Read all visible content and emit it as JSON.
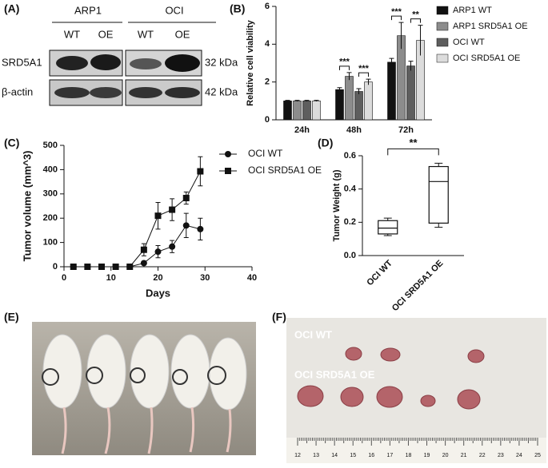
{
  "panel_labels": [
    "(A)",
    "(B)",
    "(C)",
    "(D)",
    "(E)",
    "(F)"
  ],
  "blot": {
    "groups": [
      "ARP1",
      "OCI"
    ],
    "lanes": [
      "WT",
      "OE",
      "WT",
      "OE"
    ],
    "rows": [
      "SRD5A1",
      "β-actin"
    ],
    "sizes": [
      "32 kDa",
      "42 kDa"
    ]
  },
  "photo_f": {
    "labels": [
      "OCI WT",
      "OCI SRD5A1 OE"
    ],
    "ruler": [
      12,
      13,
      14,
      15,
      16,
      17,
      18,
      19,
      20,
      21,
      22,
      23,
      24,
      25
    ]
  },
  "chart_data": [
    {
      "type": "bar",
      "y_label": "Relative cell viability",
      "categories": [
        "24h",
        "48h",
        "72h"
      ],
      "series": [
        {
          "name": "ARP1 WT",
          "color": "#111111",
          "values": [
            1.0,
            1.6,
            3.05
          ],
          "errors": [
            0.03,
            0.1,
            0.2
          ]
        },
        {
          "name": "ARP1 SRD5A1 OE",
          "color": "#8c8c8c",
          "values": [
            1.0,
            2.3,
            4.45
          ],
          "errors": [
            0.03,
            0.2,
            0.7
          ]
        },
        {
          "name": "OCI WT",
          "color": "#5e5e5e",
          "values": [
            1.0,
            1.5,
            2.85
          ],
          "errors": [
            0.03,
            0.15,
            0.25
          ]
        },
        {
          "name": "OCI SRD5A1 OE",
          "color": "#dcdcdc",
          "values": [
            1.0,
            2.0,
            4.2
          ],
          "errors": [
            0.03,
            0.15,
            0.8
          ]
        }
      ],
      "ylim": [
        0,
        6
      ],
      "yticks": [
        0,
        2,
        4,
        6
      ],
      "annotations": [
        {
          "label": "***",
          "category": "48h",
          "series": [
            "ARP1 WT",
            "ARP1 SRD5A1 OE"
          ]
        },
        {
          "label": "***",
          "category": "48h",
          "series": [
            "OCI WT",
            "OCI SRD5A1 OE"
          ]
        },
        {
          "label": "***",
          "category": "72h",
          "series": [
            "ARP1 WT",
            "ARP1 SRD5A1 OE"
          ]
        },
        {
          "label": "**",
          "category": "72h",
          "series": [
            "OCI WT",
            "OCI SRD5A1 OE"
          ]
        }
      ],
      "legend": "right"
    },
    {
      "type": "line",
      "x_label": "Days",
      "y_label": "Tumor volume (mm^3)",
      "x": [
        2,
        5,
        8,
        11,
        14,
        17,
        20,
        23,
        26,
        29
      ],
      "series": [
        {
          "name": "OCI WT",
          "color": "#111111",
          "marker": "circle",
          "values": [
            0,
            0,
            0,
            0,
            0,
            15,
            62,
            83,
            170,
            155
          ],
          "errors": [
            0,
            0,
            0,
            0,
            0,
            5,
            25,
            25,
            50,
            45
          ]
        },
        {
          "name": "OCI SRD5A1 OE",
          "color": "#111111",
          "marker": "square",
          "values": [
            0,
            0,
            0,
            0,
            0,
            70,
            210,
            235,
            283,
            393
          ],
          "errors": [
            0,
            0,
            0,
            0,
            0,
            25,
            55,
            45,
            25,
            60
          ]
        }
      ],
      "xlim": [
        0,
        40
      ],
      "xticks": [
        0,
        10,
        20,
        30,
        40
      ],
      "ylim": [
        0,
        500
      ],
      "yticks": [
        0,
        100,
        200,
        300,
        400,
        500
      ],
      "legend": "upper right"
    },
    {
      "type": "box",
      "y_label": "Tumor Weight (g)",
      "categories": [
        "OCI WT",
        "OCI SRD5A1 OE"
      ],
      "boxes": [
        {
          "min": 0.12,
          "q1": 0.13,
          "median": 0.165,
          "q3": 0.21,
          "max": 0.225
        },
        {
          "min": 0.17,
          "q1": 0.195,
          "median": 0.445,
          "q3": 0.535,
          "max": 0.555
        }
      ],
      "ylim": [
        0,
        0.6
      ],
      "yticks": [
        {
          "value": 0,
          "label": "0.0"
        },
        0.2,
        0.4,
        0.6
      ],
      "annotations": [
        {
          "label": "**",
          "categories": [
            "OCI WT",
            "OCI SRD5A1 OE"
          ]
        }
      ]
    }
  ]
}
